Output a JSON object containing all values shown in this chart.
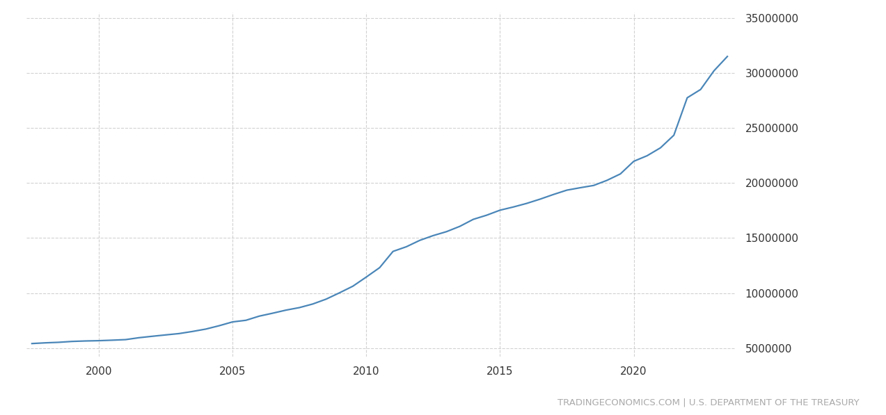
{
  "watermark": "TRADINGECONOMICS.COM | U.S. DEPARTMENT OF THE TREASURY",
  "line_color": "#4a86b8",
  "background_color": "#ffffff",
  "grid_color": "#cccccc",
  "text_color": "#333333",
  "ylim": [
    4200000,
    35500000
  ],
  "yticks": [
    5000000,
    10000000,
    15000000,
    20000000,
    25000000,
    30000000,
    35000000
  ],
  "xlim_start": 1997.3,
  "xlim_end": 2023.8,
  "xticks": [
    2000,
    2005,
    2010,
    2015,
    2020
  ],
  "years": [
    1997.5,
    1998.0,
    1998.5,
    1999.0,
    1999.5,
    2000.0,
    2000.5,
    2001.0,
    2001.5,
    2002.0,
    2002.5,
    2003.0,
    2003.5,
    2004.0,
    2004.5,
    2005.0,
    2005.5,
    2006.0,
    2006.5,
    2007.0,
    2007.5,
    2008.0,
    2008.5,
    2009.0,
    2009.5,
    2010.0,
    2010.5,
    2011.0,
    2011.5,
    2012.0,
    2012.5,
    2013.0,
    2013.5,
    2014.0,
    2014.5,
    2015.0,
    2015.5,
    2016.0,
    2016.5,
    2017.0,
    2017.5,
    2018.0,
    2018.5,
    2019.0,
    2019.5,
    2020.0,
    2020.5,
    2021.0,
    2021.5,
    2022.0,
    2022.5,
    2023.0,
    2023.5
  ],
  "values": [
    5413146,
    5478189,
    5526193,
    5606087,
    5647900,
    5674178,
    5718819,
    5769881,
    5943438,
    6073574,
    6198401,
    6319613,
    6510846,
    6727901,
    7033765,
    7379069,
    7526765,
    7905709,
    8170425,
    8451350,
    8680224,
    9007653,
    9450153,
    10024725,
    10626877,
    11456418,
    12311349,
    13786603,
    14211567,
    14790340,
    15222940,
    15582112,
    16066241,
    16699396,
    17075590,
    17532048,
    17823453,
    18150617,
    18536655,
    18960914,
    19353139,
    19573445,
    19779589,
    20244900,
    20827698,
    21974664,
    22481000,
    23201380,
    24345118,
    27747902,
    28500000,
    30200000,
    31500000
  ],
  "line_width": 1.6
}
